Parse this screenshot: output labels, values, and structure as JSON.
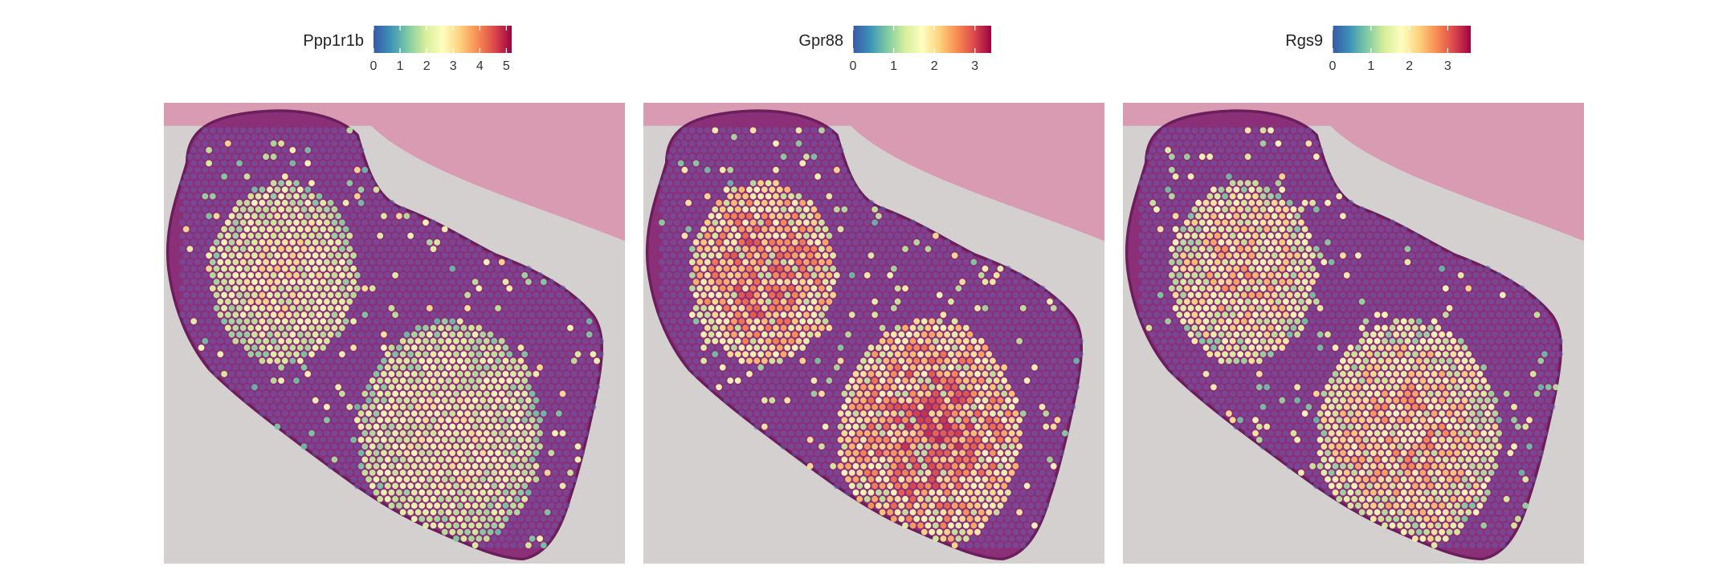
{
  "chart_data": [
    {
      "type": "heatmap",
      "subtype": "spatial-spot-expression",
      "legend_title": "Ppp1r1b",
      "colorbar": {
        "min": 0,
        "max": 5.2,
        "ticks": [
          "0",
          "1",
          "2",
          "3",
          "4",
          "5"
        ],
        "tick_values": [
          0,
          1,
          2,
          3,
          4,
          5
        ],
        "placement": "top"
      },
      "colormap": [
        "#3b58a7",
        "#3c93b8",
        "#80cba4",
        "#d6ee9b",
        "#fefebf",
        "#fdd27e",
        "#f88d52",
        "#dc4a4c",
        "#9e0142"
      ],
      "hotspots": [
        {
          "x": 0.26,
          "y": 0.37,
          "r": 0.16,
          "level": 2.6
        },
        {
          "x": 0.62,
          "y": 0.72,
          "r": 0.2,
          "level": 2.5
        }
      ],
      "background_level": 0.05
    },
    {
      "type": "heatmap",
      "subtype": "spatial-spot-expression",
      "legend_title": "Gpr88",
      "colorbar": {
        "min": 0,
        "max": 3.4,
        "ticks": [
          "0",
          "1",
          "2",
          "3"
        ],
        "tick_values": [
          0,
          1,
          2,
          3
        ],
        "placement": "top"
      },
      "colormap": [
        "#3b58a7",
        "#3c93b8",
        "#80cba4",
        "#d6ee9b",
        "#fefebf",
        "#fdd27e",
        "#f88d52",
        "#dc4a4c",
        "#9e0142"
      ],
      "hotspots": [
        {
          "x": 0.26,
          "y": 0.37,
          "r": 0.16,
          "level": 2.4
        },
        {
          "x": 0.62,
          "y": 0.72,
          "r": 0.2,
          "level": 2.5
        }
      ],
      "background_level": 0.05
    },
    {
      "type": "heatmap",
      "subtype": "spatial-spot-expression",
      "legend_title": "Rgs9",
      "colorbar": {
        "min": 0,
        "max": 3.6,
        "ticks": [
          "0",
          "1",
          "2",
          "3"
        ],
        "tick_values": [
          0,
          1,
          2,
          3
        ],
        "placement": "top"
      },
      "colormap": [
        "#3b58a7",
        "#3c93b8",
        "#80cba4",
        "#d6ee9b",
        "#fefebf",
        "#fdd27e",
        "#f88d52",
        "#dc4a4c",
        "#9e0142"
      ],
      "hotspots": [
        {
          "x": 0.26,
          "y": 0.37,
          "r": 0.16,
          "level": 2.0
        },
        {
          "x": 0.62,
          "y": 0.72,
          "r": 0.2,
          "level": 2.1
        }
      ],
      "background_level": 0.05
    }
  ],
  "colors": {
    "tissue": "#8a2f78",
    "tissue_edge": "#6a1f5c",
    "slide_background": "#d4d0d0",
    "pink_stain": "#d98aa8",
    "low_spot": "#6a5aa8"
  }
}
